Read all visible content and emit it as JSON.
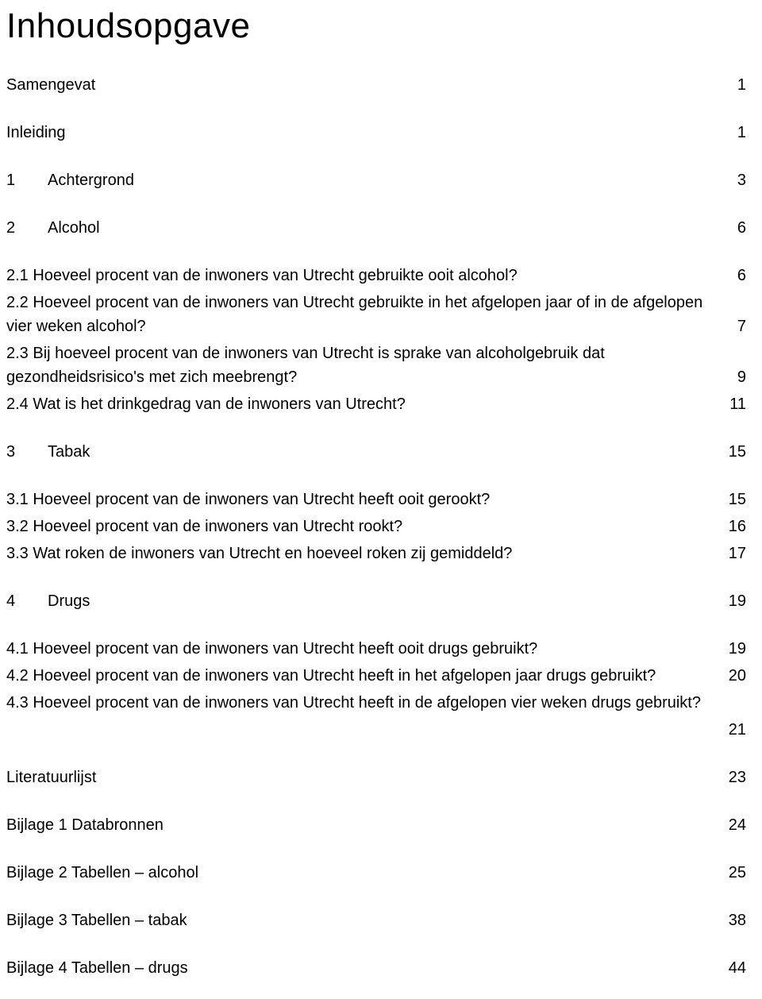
{
  "title": "Inhoudsopgave",
  "entries": [
    {
      "kind": "simple",
      "label": "Samengevat",
      "page": "1"
    },
    {
      "kind": "gap"
    },
    {
      "kind": "simple",
      "label": "Inleiding",
      "page": "1"
    },
    {
      "kind": "gap"
    },
    {
      "kind": "chapter",
      "num": "1",
      "label": "Achtergrond",
      "page": "3"
    },
    {
      "kind": "gap"
    },
    {
      "kind": "chapter",
      "num": "2",
      "label": "Alcohol",
      "page": "6"
    },
    {
      "kind": "gap"
    },
    {
      "kind": "sub",
      "text": "2.1 Hoeveel procent van de inwoners van Utrecht gebruikte ooit alcohol?",
      "page": "6"
    },
    {
      "kind": "sub-multiline",
      "line1": "2.2 Hoeveel procent van de inwoners van Utrecht gebruikte in het afgelopen jaar of in de afgelopen",
      "line2": "vier weken alcohol?",
      "page": "7"
    },
    {
      "kind": "sub-multiline",
      "line1": "2.3 Bij hoeveel procent van de inwoners van Utrecht is sprake van alcoholgebruik dat",
      "line2": "gezondheidsrisico's met zich meebrengt?",
      "page": "9"
    },
    {
      "kind": "sub",
      "text": "2.4 Wat is het drinkgedrag van de inwoners van Utrecht?",
      "page": "11"
    },
    {
      "kind": "gap"
    },
    {
      "kind": "chapter",
      "num": "3",
      "label": "Tabak",
      "page": "15"
    },
    {
      "kind": "gap"
    },
    {
      "kind": "sub",
      "text": "3.1 Hoeveel procent van de inwoners van Utrecht heeft ooit gerookt?",
      "page": "15"
    },
    {
      "kind": "sub",
      "text": "3.2 Hoeveel procent van de inwoners van Utrecht rookt?",
      "page": "16"
    },
    {
      "kind": "sub",
      "text": "3.3 Wat roken de inwoners van Utrecht en hoeveel roken zij gemiddeld?",
      "page": "17"
    },
    {
      "kind": "gap"
    },
    {
      "kind": "chapter",
      "num": "4",
      "label": "Drugs",
      "page": "19"
    },
    {
      "kind": "gap"
    },
    {
      "kind": "sub",
      "text": "4.1 Hoeveel procent van de inwoners van Utrecht heeft ooit drugs gebruikt?",
      "page": "19"
    },
    {
      "kind": "sub",
      "text": "4.2 Hoeveel procent van de inwoners van Utrecht heeft in het afgelopen jaar drugs gebruikt?",
      "page": "20"
    },
    {
      "kind": "sub-overflow",
      "text": "4.3 Hoeveel procent van de inwoners van Utrecht heeft in de afgelopen vier weken drugs gebruikt?",
      "page": "21"
    },
    {
      "kind": "gap"
    },
    {
      "kind": "simple",
      "label": "Literatuurlijst",
      "page": "23"
    },
    {
      "kind": "gap"
    },
    {
      "kind": "simple",
      "label": "Bijlage 1 Databronnen",
      "page": "24"
    },
    {
      "kind": "gap"
    },
    {
      "kind": "simple",
      "label": "Bijlage 2 Tabellen – alcohol",
      "page": "25"
    },
    {
      "kind": "gap"
    },
    {
      "kind": "simple",
      "label": "Bijlage 3 Tabellen – tabak",
      "page": "38"
    },
    {
      "kind": "gap"
    },
    {
      "kind": "simple",
      "label": "Bijlage 4 Tabellen – drugs",
      "page": "44"
    }
  ]
}
